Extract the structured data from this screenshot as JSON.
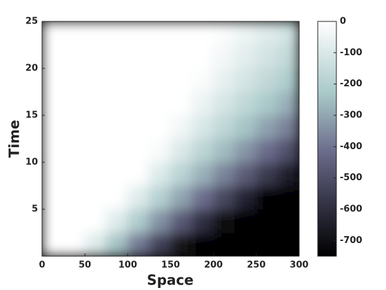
{
  "chart_data": {
    "type": "heatmap",
    "xlabel": "Space",
    "ylabel": "Time",
    "x": [
      12.5,
      37.5,
      62.5,
      87.5,
      112.5,
      137.5,
      162.5,
      187.5,
      212.5,
      237.5,
      262.5,
      287.5
    ],
    "y": [
      1.25,
      3.75,
      6.25,
      8.75,
      11.25,
      13.75,
      16.25,
      18.75,
      21.25,
      23.75
    ],
    "z": [
      [
        0,
        0,
        -91,
        -242,
        -392,
        -542,
        -692,
        -750,
        -750,
        -750,
        -750,
        -750
      ],
      [
        0,
        0,
        0,
        -86,
        -214,
        -342,
        -470,
        -599,
        -727,
        -750,
        -750,
        -750
      ],
      [
        0,
        0,
        0,
        0,
        -86,
        -196,
        -305,
        -415,
        -524,
        -634,
        -743,
        -750
      ],
      [
        0,
        0,
        0,
        0,
        0,
        -91,
        -184,
        -278,
        -371,
        -465,
        -558,
        -652
      ],
      [
        0,
        0,
        0,
        0,
        0,
        -17,
        -97,
        -177,
        -257,
        -337,
        -417,
        -497
      ],
      [
        0,
        0,
        0,
        0,
        0,
        0,
        -35,
        -103,
        -171,
        -239,
        -308,
        -376
      ],
      [
        0,
        0,
        0,
        0,
        0,
        0,
        0,
        -51,
        -109,
        -168,
        -226,
        -285
      ],
      [
        0,
        0,
        0,
        0,
        0,
        0,
        0,
        -14,
        -64,
        -114,
        -164,
        -213
      ],
      [
        0,
        0,
        0,
        0,
        0,
        0,
        0,
        0,
        -33,
        -75,
        -118,
        -160
      ],
      [
        0,
        0,
        0,
        0,
        0,
        0,
        0,
        0,
        -11,
        -48,
        -84,
        -121
      ]
    ],
    "xlim": [
      0,
      300
    ],
    "ylim": [
      0,
      25
    ],
    "xticks": [
      0,
      50,
      100,
      150,
      200,
      250,
      300
    ],
    "yticks": [
      5,
      10,
      15,
      20,
      25
    ],
    "clim": [
      -750,
      0
    ],
    "cticks": [
      0,
      -100,
      -200,
      -300,
      -400,
      -500,
      -600,
      -700
    ],
    "colormap": [
      {
        "value": -750,
        "color": "#000000"
      },
      {
        "value": -560,
        "color": "#3a3a4f"
      },
      {
        "value": -420,
        "color": "#6a6a8a"
      },
      {
        "value": -230,
        "color": "#a9c9c9"
      },
      {
        "value": 0,
        "color": "#ffffff"
      }
    ]
  }
}
